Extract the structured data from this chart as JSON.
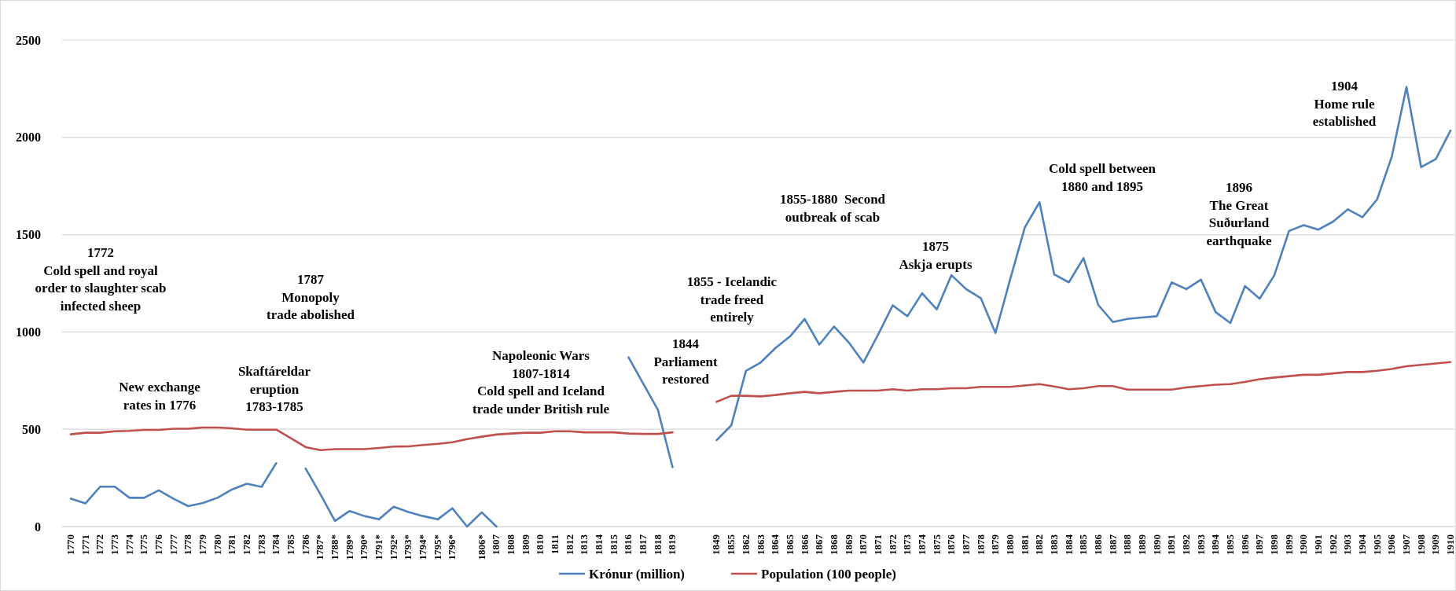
{
  "chart_data": {
    "type": "line",
    "categories": [
      "1770",
      "1771",
      "1772",
      "1773",
      "1774",
      "1775",
      "1776",
      "1777",
      "1778",
      "1779",
      "1780",
      "1781",
      "1782",
      "1783",
      "1784",
      "1785",
      "1786",
      "1787*",
      "1788*",
      "1789*",
      "1790*",
      "1791*",
      "1792*",
      "1793*",
      "1794*",
      "1795*",
      "1796*",
      null,
      "1806*",
      "1807",
      "1808",
      "1809",
      "1810",
      "1811",
      "1812",
      "1813",
      "1814",
      "1815",
      "1816",
      "1817",
      "1818",
      "1819",
      null,
      null,
      "1849",
      "1855",
      "1862",
      "1863",
      "1864",
      "1865",
      "1866",
      "1867",
      "1868",
      "1869",
      "1870",
      "1871",
      "1872",
      "1873",
      "1874",
      "1875",
      "1876",
      "1877",
      "1878",
      "1879",
      "1880",
      "1881",
      "1882",
      "1883",
      "1884",
      "1885",
      "1886",
      "1887",
      "1888",
      "1889",
      "1890",
      "1891",
      "1892",
      "1893",
      "1894",
      "1895",
      "1896",
      "1897",
      "1898",
      "1899",
      "1900",
      "1901",
      "1902",
      "1903",
      "1904",
      "1905",
      "1906",
      "1907",
      "1908",
      "1909",
      "1910"
    ],
    "series": [
      {
        "name": "Krónur (million)",
        "color": "#4f81bd",
        "values": [
          143,
          119,
          205,
          205,
          148,
          148,
          186,
          143,
          105,
          121,
          148,
          191,
          220,
          204,
          326,
          null,
          298,
          167,
          29,
          80,
          54,
          37,
          102,
          75,
          54,
          37,
          94,
          0,
          73,
          0,
          null,
          null,
          null,
          null,
          null,
          null,
          null,
          null,
          870,
          735,
          600,
          305,
          null,
          null,
          444,
          520,
          800,
          843,
          917,
          977,
          1067,
          935,
          1028,
          947,
          843,
          986,
          1137,
          1081,
          1199,
          1116,
          1292,
          1220,
          1174,
          995,
          1271,
          1537,
          1667,
          1296,
          1255,
          1380,
          1139,
          1051,
          1067,
          1074,
          1081,
          1255,
          1220,
          1269,
          1102,
          1046,
          1236,
          1171,
          1292,
          1519,
          1549,
          1526,
          1567,
          1630,
          1590,
          1681,
          1901,
          2259,
          1847,
          1889,
          2035
        ]
      },
      {
        "name": "Population (100 people)",
        "color": "#c0504d",
        "values": [
          474,
          482,
          482,
          490,
          492,
          497,
          497,
          503,
          503,
          509,
          509,
          505,
          498,
          498,
          498,
          454,
          408,
          393,
          398,
          398,
          398,
          404,
          411,
          412,
          419,
          425,
          433,
          449,
          462,
          473,
          478,
          482,
          482,
          490,
          490,
          484,
          484,
          484,
          478,
          476,
          476,
          484,
          null,
          null,
          641,
          672,
          672,
          669,
          676,
          685,
          692,
          685,
          692,
          699,
          699,
          699,
          706,
          699,
          706,
          706,
          711,
          711,
          718,
          718,
          718,
          725,
          732,
          720,
          706,
          711,
          722,
          722,
          704,
          704,
          704,
          704,
          715,
          722,
          729,
          732,
          743,
          757,
          766,
          773,
          780,
          780,
          787,
          794,
          794,
          801,
          810,
          824,
          831,
          838,
          845
        ]
      }
    ],
    "ylim": [
      0,
      2500
    ],
    "yticks": [
      0,
      500,
      1000,
      1500,
      2000,
      2500
    ],
    "grid": "y",
    "legend": "bottom",
    "marker": "none",
    "line_style": "solid",
    "annotations": [
      "1772\nCold spell and royal\norder to slaughter scab\ninfected sheep",
      "New exchange\nrates in 1776",
      "Skaftáreldar\neruption\n1783-1785",
      "1787\nMonopoly\ntrade abolished",
      "Napoleonic Wars\n1807-1814\nCold spell and Iceland\ntrade under British rule",
      "1844\nParliament\nrestored",
      "1855 - Icelandic\ntrade freed\nentirely",
      "1855-1880  Second\noutbreak of scab",
      "1875\nAskja erupts",
      "Cold spell between\n1880 and 1895",
      "1896\nThe Great\nSuðurland\nearthquake",
      "1904\nHome rule\nestablished"
    ]
  }
}
